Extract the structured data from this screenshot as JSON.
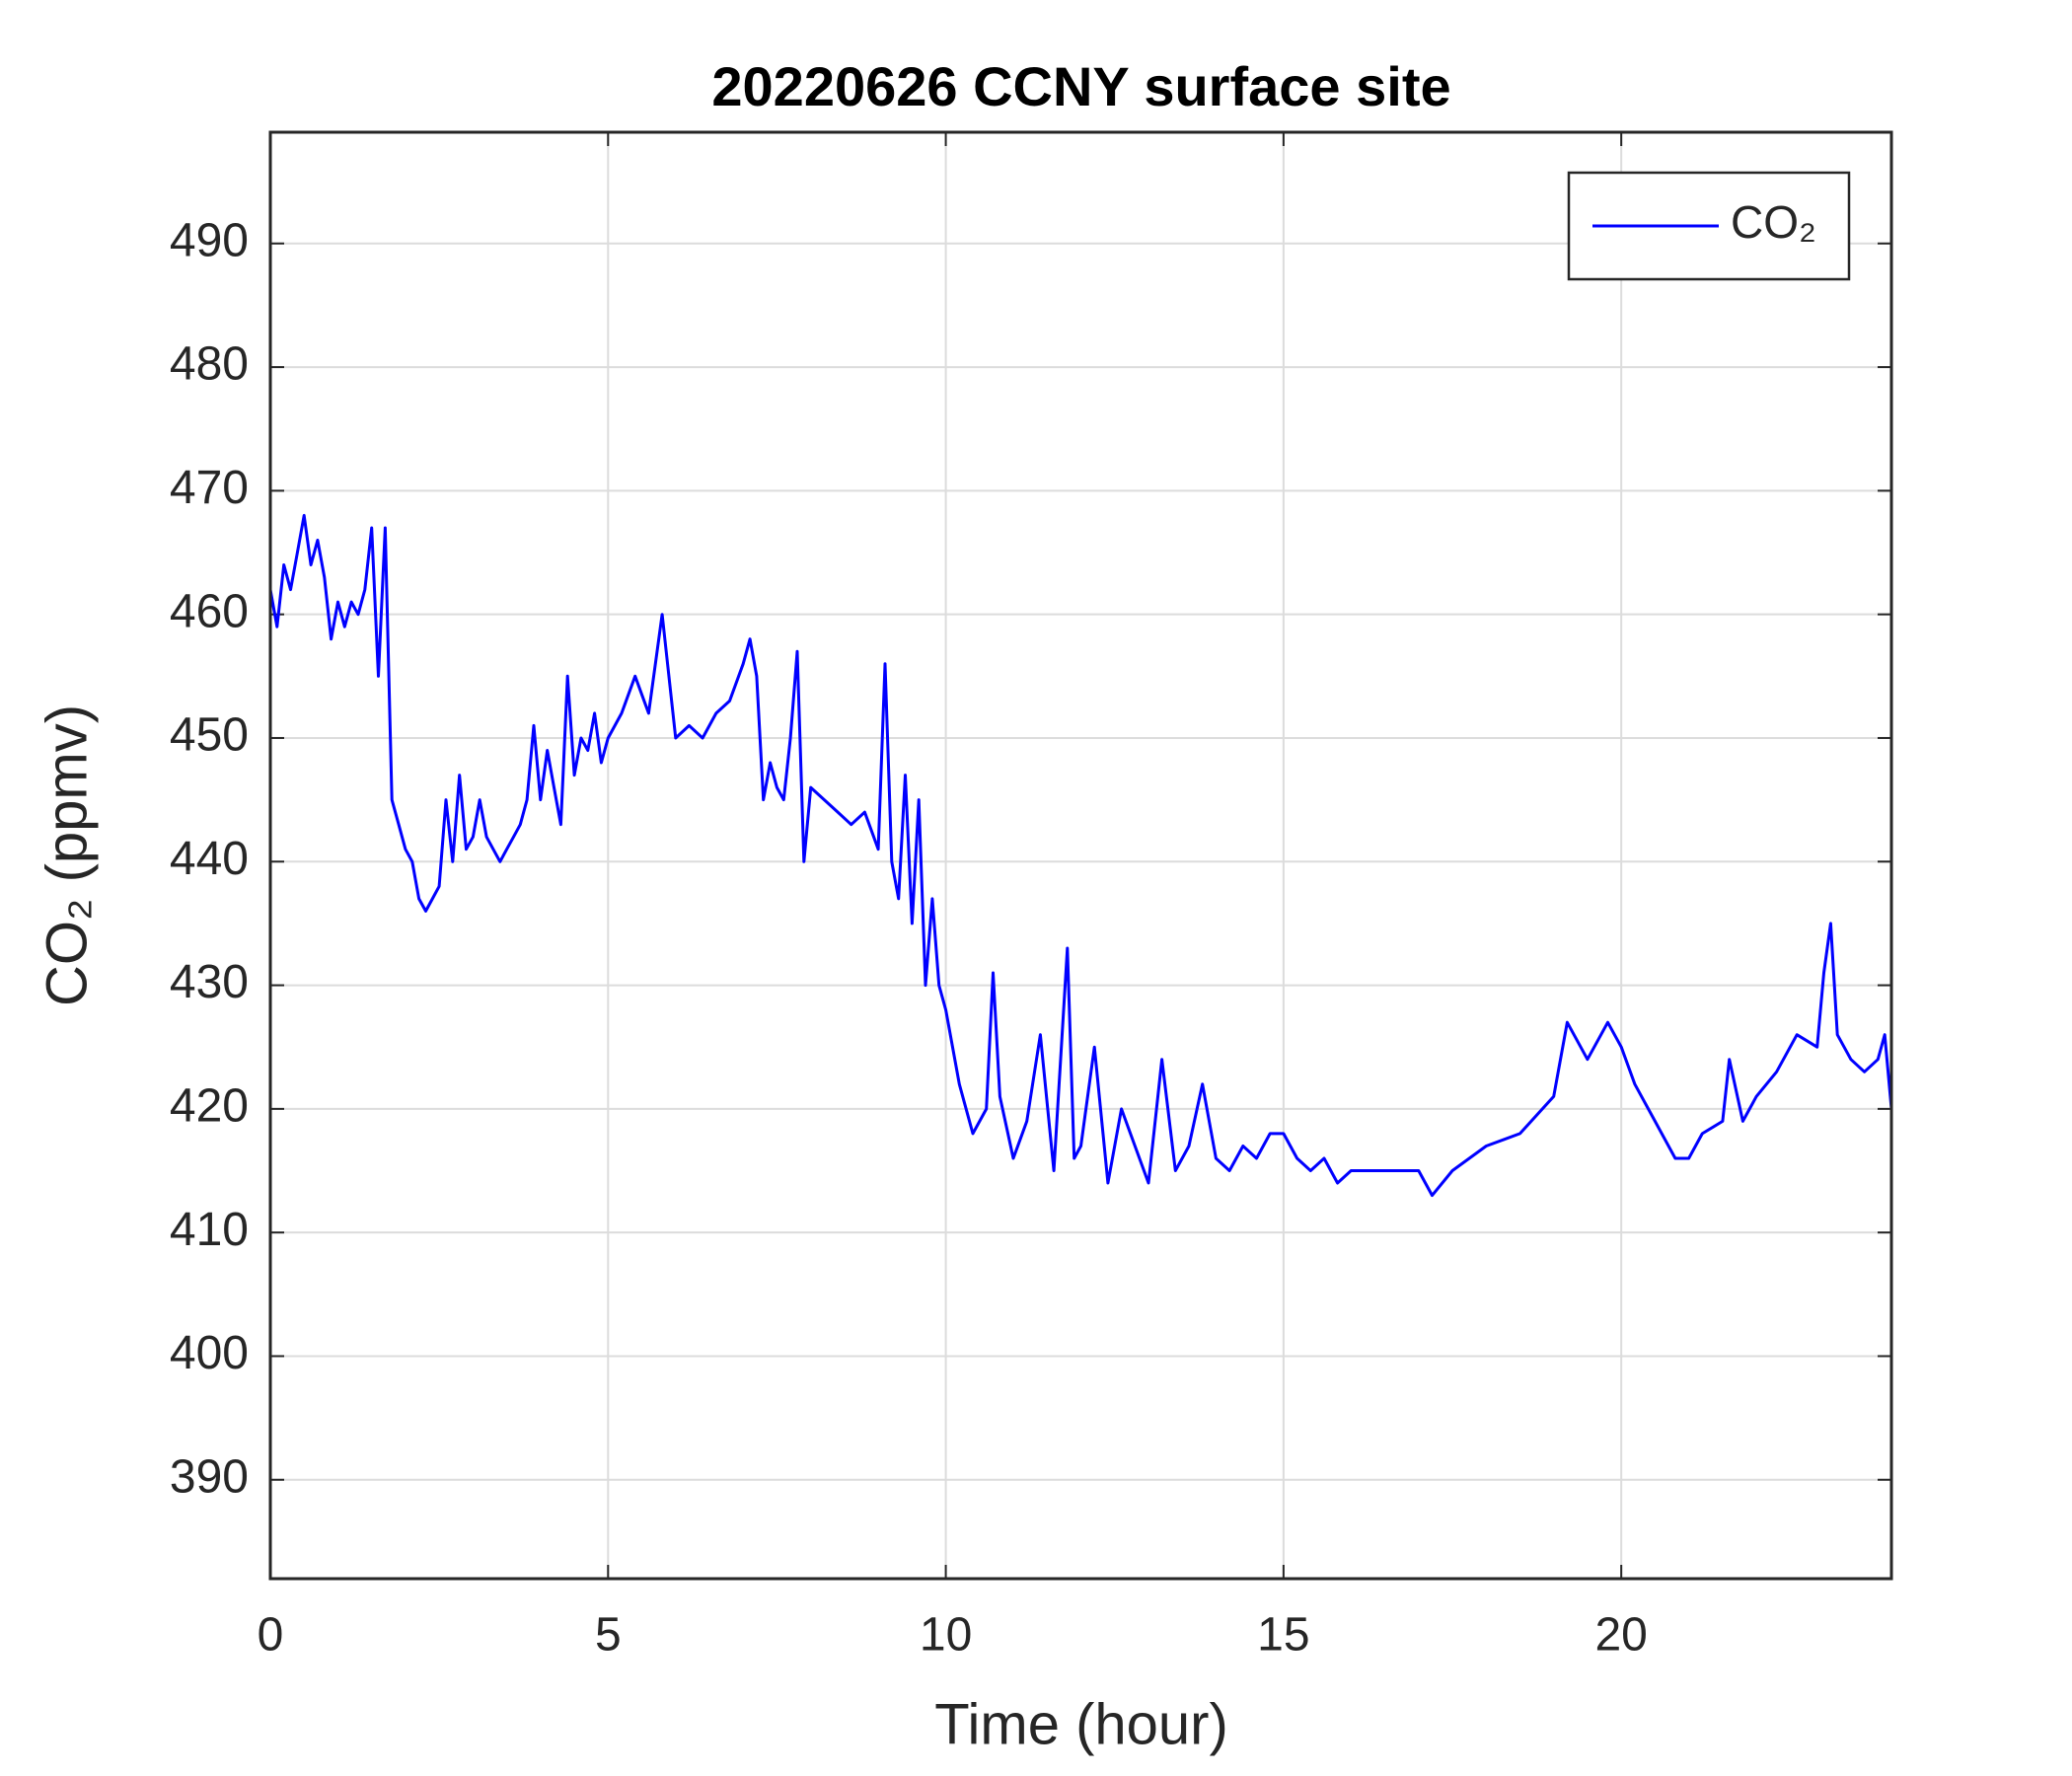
{
  "chart_data": {
    "type": "line",
    "title": "20220626 CCNY surface site",
    "xlabel": "Time (hour)",
    "ylabel": "CO₂ (ppmv)",
    "x": [
      0,
      0.1,
      0.2,
      0.3,
      0.4,
      0.5,
      0.6,
      0.7,
      0.8,
      0.9,
      1.0,
      1.1,
      1.2,
      1.3,
      1.4,
      1.5,
      1.6,
      1.7,
      1.8,
      1.9,
      2.0,
      2.1,
      2.2,
      2.3,
      2.4,
      2.5,
      2.6,
      2.7,
      2.8,
      2.9,
      3.0,
      3.1,
      3.2,
      3.3,
      3.4,
      3.5,
      3.6,
      3.7,
      3.8,
      3.9,
      4.0,
      4.1,
      4.2,
      4.3,
      4.4,
      4.5,
      4.6,
      4.7,
      4.8,
      4.9,
      5.0,
      5.2,
      5.4,
      5.6,
      5.8,
      6.0,
      6.2,
      6.4,
      6.6,
      6.8,
      7.0,
      7.1,
      7.2,
      7.3,
      7.4,
      7.5,
      7.6,
      7.7,
      7.8,
      7.9,
      8.0,
      8.2,
      8.4,
      8.6,
      8.8,
      9.0,
      9.1,
      9.2,
      9.3,
      9.4,
      9.5,
      9.6,
      9.7,
      9.8,
      9.9,
      10.0,
      10.2,
      10.4,
      10.6,
      10.7,
      10.8,
      11.0,
      11.2,
      11.4,
      11.6,
      11.8,
      11.9,
      12.0,
      12.2,
      12.4,
      12.6,
      12.8,
      13.0,
      13.2,
      13.4,
      13.6,
      13.8,
      14.0,
      14.2,
      14.4,
      14.6,
      14.8,
      15.0,
      15.2,
      15.4,
      15.6,
      15.8,
      16.0,
      16.5,
      17.0,
      17.2,
      17.5,
      18.0,
      18.5,
      19.0,
      19.2,
      19.5,
      19.8,
      20.0,
      20.2,
      20.5,
      20.8,
      21.0,
      21.2,
      21.5,
      21.6,
      21.8,
      22.0,
      22.3,
      22.6,
      22.9,
      23.0,
      23.1,
      23.2,
      23.4,
      23.6,
      23.8,
      23.9,
      24.0
    ],
    "series": [
      {
        "name": "CO₂",
        "color": "#0000ff",
        "values": [
          462,
          459,
          464,
          462,
          465,
          468,
          464,
          466,
          463,
          458,
          461,
          459,
          461,
          460,
          462,
          467,
          455,
          467,
          445,
          443,
          441,
          440,
          437,
          436,
          437,
          438,
          445,
          440,
          447,
          441,
          442,
          445,
          442,
          441,
          440,
          441,
          442,
          443,
          445,
          451,
          445,
          449,
          446,
          443,
          455,
          447,
          450,
          449,
          452,
          448,
          450,
          452,
          455,
          452,
          460,
          450,
          451,
          450,
          452,
          453,
          456,
          458,
          455,
          445,
          448,
          446,
          445,
          450,
          457,
          440,
          446,
          445,
          444,
          443,
          444,
          441,
          456,
          440,
          437,
          447,
          435,
          445,
          430,
          437,
          430,
          428,
          422,
          418,
          420,
          431,
          421,
          416,
          419,
          426,
          415,
          433,
          416,
          417,
          425,
          414,
          420,
          417,
          414,
          424,
          415,
          417,
          422,
          416,
          415,
          417,
          416,
          418,
          418,
          416,
          415,
          416,
          414,
          415,
          415,
          415,
          413,
          415,
          417,
          418,
          421,
          427,
          424,
          427,
          425,
          422,
          419,
          416,
          416,
          418,
          419,
          424,
          419,
          421,
          423,
          426,
          425,
          431,
          435,
          426,
          424,
          423,
          424,
          426,
          420
        ]
      }
    ],
    "xlim": [
      0,
      24
    ],
    "xticks": [
      0,
      5,
      10,
      15,
      20
    ],
    "ylim": [
      382,
      499
    ],
    "yticks": [
      390,
      400,
      410,
      420,
      430,
      440,
      450,
      460,
      470,
      480,
      490
    ],
    "grid": true,
    "legend": "upper right"
  }
}
